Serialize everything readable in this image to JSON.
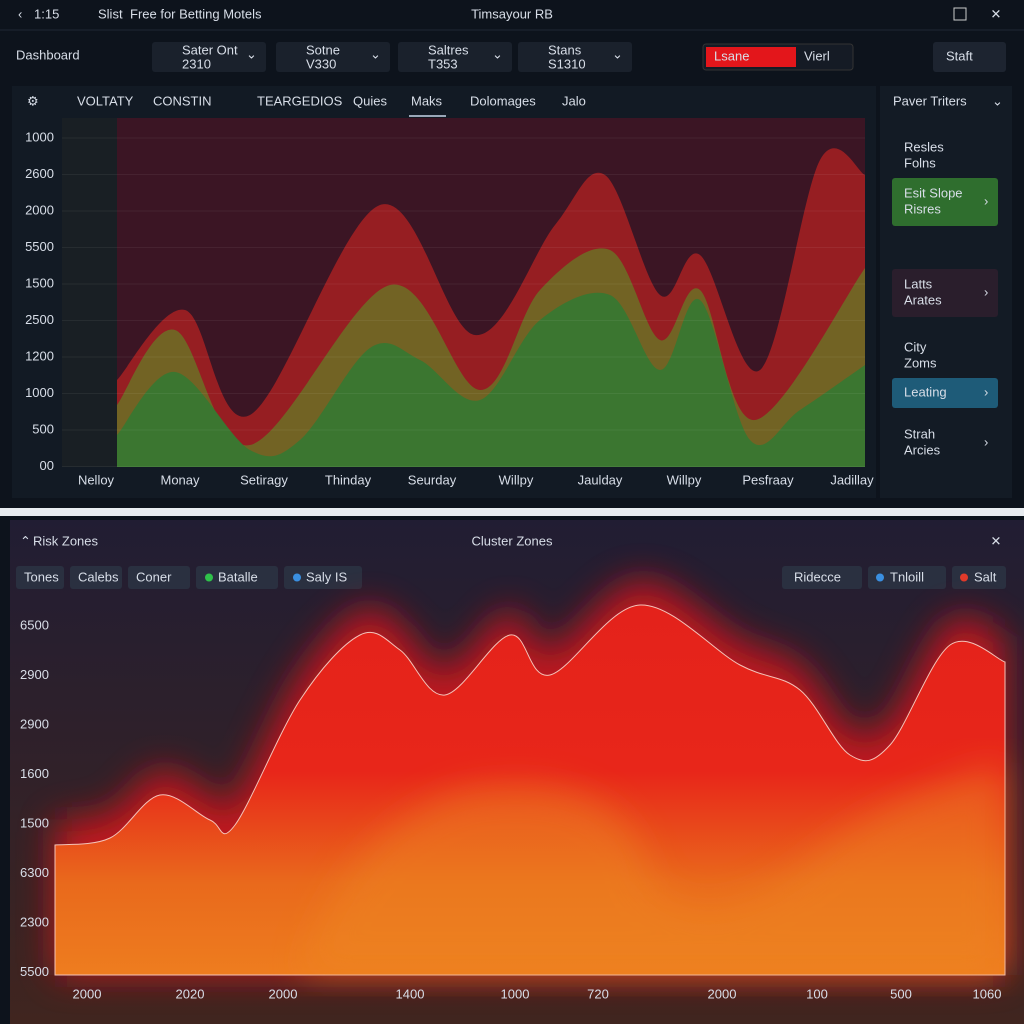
{
  "topbar": {
    "time": "1:15",
    "app": "Slist",
    "subtitle": "Free for Betting Motels",
    "title": "Timsayour RB"
  },
  "header": {
    "title": "Dashboard",
    "selectors": [
      {
        "label": "Sater Ont",
        "value": "2310"
      },
      {
        "label": "Sotne",
        "value": "V330"
      },
      {
        "label": "Saltres",
        "value": "T353"
      },
      {
        "label": "Stans",
        "value": "S1310"
      }
    ],
    "input": "Lsane",
    "view": "Vierl",
    "button": "Staft"
  },
  "tabs": [
    "VOLTATY",
    "CONSTIN",
    "TEARGEDIOS",
    "Quies",
    "Maks",
    "Dolomages",
    "Jalo"
  ],
  "top_chart": {
    "y_labels": [
      "1000",
      "2600",
      "2000",
      "5500",
      "1500",
      "2500",
      "1200",
      "1000",
      "500",
      "00"
    ],
    "x_labels": [
      "Nelloy",
      "Monay",
      "Setiragy",
      "Thinday",
      "Seurday",
      "Willpy",
      "Jaulday",
      "Willpy",
      "Pesfraay",
      "Jadillay"
    ]
  },
  "side_panel": {
    "title": "Paver Triters",
    "items": [
      {
        "title": "Resles",
        "sub": "Folns"
      },
      {
        "title": "Esit Slope",
        "sub": "Risres"
      },
      {
        "title": "Latts",
        "sub": "Arates"
      },
      {
        "title": "City",
        "sub": "Zoms"
      },
      {
        "title": "Leating",
        "sub": ""
      },
      {
        "title": "Strah",
        "sub": "Arcies"
      }
    ]
  },
  "bottom_panel": {
    "title": "Risk Zones",
    "center_title": "Cluster Zones",
    "filters_left": [
      "Tones",
      "Calebs",
      "Coner",
      "Batalle",
      "Saly IS"
    ],
    "filters_right": [
      "Ridecce",
      "Tnloill",
      "Salt"
    ],
    "y_labels": [
      "6500",
      "2900",
      "2900",
      "1600",
      "1500",
      "6300",
      "2300",
      "5500"
    ],
    "x_labels": [
      "2000",
      "2020",
      "2000",
      "1400",
      "1000",
      "720",
      "2000",
      "100",
      "500",
      "1060"
    ]
  }
}
